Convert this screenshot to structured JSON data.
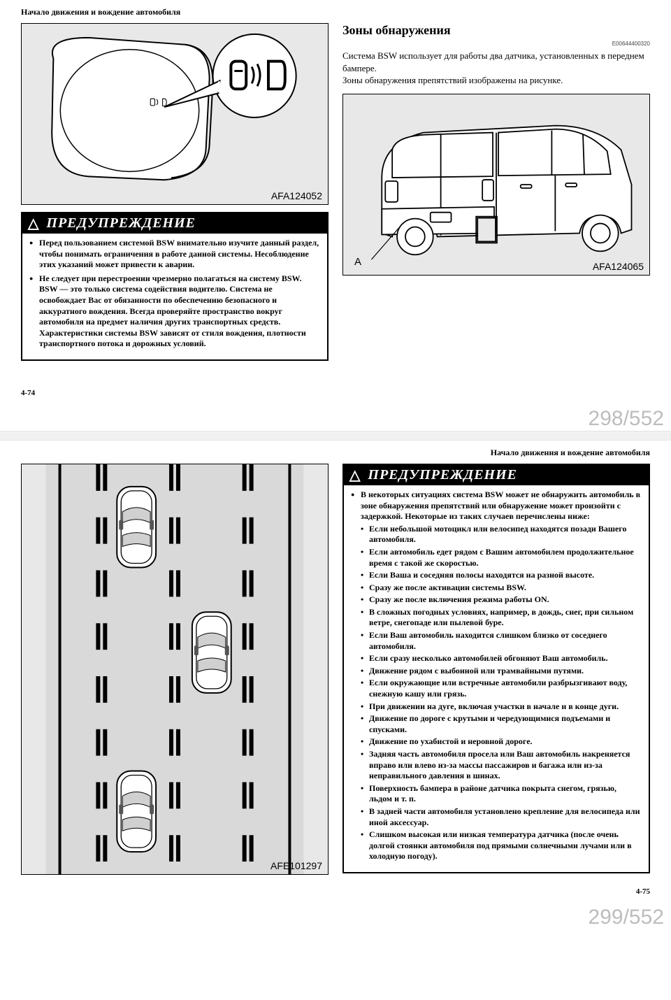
{
  "page1": {
    "header": "Начало движения и вождение автомобиля",
    "figure1_label": "AFA124052",
    "section_title": "Зоны обнаружения",
    "doc_code": "E00644400320",
    "body_text": "Система BSW использует для работы два датчика, установленных в переднем бампере.\nЗоны обнаружения препятствий изображены на рисунке.",
    "figure2_label": "AFA124065",
    "figure2_a": "A",
    "warning_title": "ПРЕДУПРЕЖДЕНИЕ",
    "warning_items": [
      "Перед пользованием системой BSW внимательно изучите данный раздел, чтобы понимать ограничения в работе данной системы. Несоблюдение этих указаний может привести к аварии.",
      "Не следует при перестроении чрезмерно полагаться на систему BSW. BSW — это только система содействия водителю. Система не освобождает Вас от обязанности по обеспечению безопасного и аккуратного вождения. Всегда проверяйте пространство вокруг автомобиля на предмет наличия других транспортных средств. Характеристики системы BSW зависят от стиля вождения, плотности транспортного потока и дорожных условий."
    ],
    "page_num": "4-74",
    "counter": "298/552"
  },
  "page2": {
    "header": "Начало движения и вождение автомобиля",
    "figure_label": "AFE101297",
    "warning_title": "ПРЕДУПРЕЖДЕНИЕ",
    "warning_intro": "В некоторых ситуациях система BSW может не обнаружить автомобиль в зоне обнаружения препятствий или обнаружение может произойти с задержкой. Некоторые из таких случаев перечислены ниже:",
    "warning_subitems": [
      "Если небольшой мотоцикл или велосипед находятся позади Вашего автомобиля.",
      "Если автомобиль едет рядом с Вашим автомобилем продолжительное время с такой же скоростью.",
      "Если Ваша и соседняя полосы находятся на разной высоте.",
      "Сразу же после активации системы BSW.",
      "Сразу же после включения режима работы ON.",
      "В сложных погодных условиях, например, в дождь, снег, при сильном ветре, снегопаде или пылевой буре.",
      "Если Ваш автомобиль находится слишком близко от соседнего автомобиля.",
      "Если сразу несколько автомобилей обгоняют Ваш автомобиль.",
      "Движение рядом с выбоиной или трамвайными путями.",
      "Если окружающие или встречные автомобили разбрызгивают воду, снежную кашу или грязь.",
      "При движении на дуге, включая участки в начале и в конце дуги.",
      "Движение по дороге с крутыми и чередующимися подъемами и спусками.",
      "Движение по ухабистой и неровной дороге.",
      "Задняя часть автомобиля просела или Ваш автомобиль накреняется вправо или влево из-за массы пассажиров и багажа или из-за неправильного давления в шинах.",
      "Поверхность бампера в районе датчика покрыта снегом, грязью, льдом и т. п.",
      "В задней части автомобиля установлено крепление для велосипеда или иной аксессуар.",
      "Слишком высокая или низкая температура датчика (после очень долгой стоянки автомобиля под прямыми солнечными лучами или в холодную погоду)."
    ],
    "page_num": "4-75",
    "counter": "299/552"
  }
}
